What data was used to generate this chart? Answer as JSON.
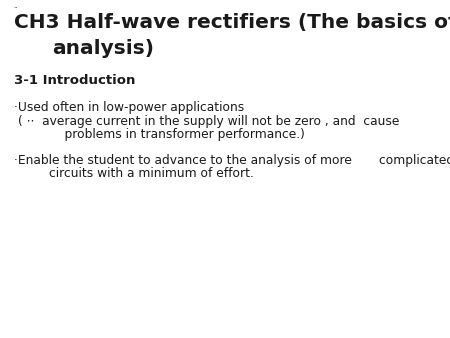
{
  "title_line1": "CH3 Half-wave rectifiers (The basics of",
  "title_line2": "analysis)",
  "section": "3-1 Introduction",
  "bullet1_line1": "·Used often in low-power applications",
  "bullet1_line2": "( ⋅⋅  average current in the supply will not be zero , and  cause",
  "bullet1_line3": "            problems in transformer performance.)",
  "bullet2_line1": "·Enable the student to advance to the analysis of more       complicated",
  "bullet2_line2": "        circuits with a minimum of effort.",
  "tiny_dots": "⋅⋅",
  "bg_color": "#ffffff",
  "text_color": "#1a1a1a",
  "title_fontsize": 14.5,
  "section_fontsize": 9.5,
  "body_fontsize": 8.8
}
